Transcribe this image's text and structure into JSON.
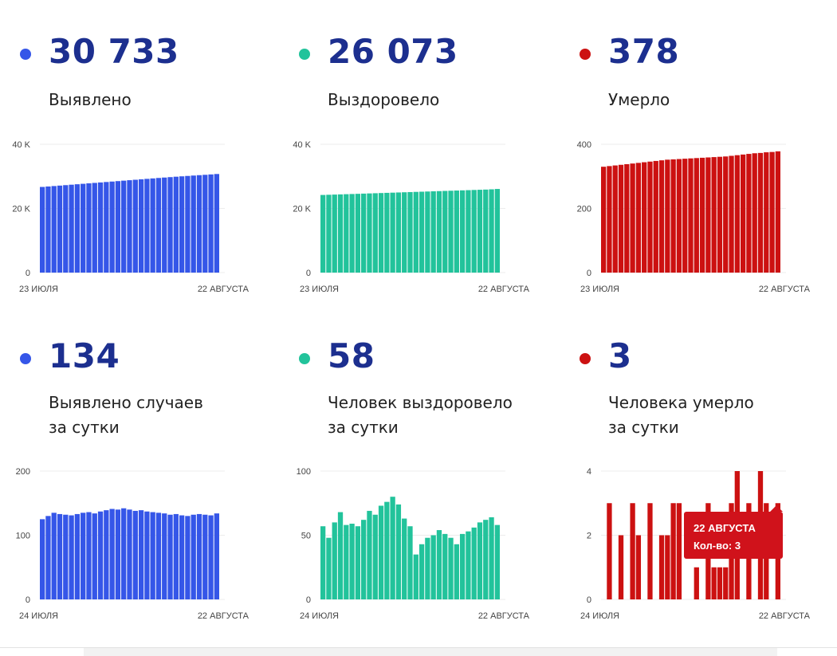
{
  "cards": [
    {
      "value": "30 733",
      "label1": "Выявлено",
      "label2": "",
      "color": "#3556e8"
    },
    {
      "value": "26 073",
      "label1": "Выздоровело",
      "label2": "",
      "color": "#22c39b"
    },
    {
      "value": "378",
      "label1": "Умерло",
      "label2": "",
      "color": "#cc1111"
    },
    {
      "value": "134",
      "label1": "Выявлено случаев",
      "label2": "за сутки",
      "color": "#3556e8"
    },
    {
      "value": "58",
      "label1": "Человек выздоровело",
      "label2": "за сутки",
      "color": "#22c39b"
    },
    {
      "value": "3",
      "label1": "Человека умерло",
      "label2": "за сутки",
      "color": "#cc1111"
    }
  ],
  "tooltip": {
    "date": "22 АВГУСТА",
    "count": "Кол-во: 3"
  },
  "chart_data": [
    {
      "type": "bar",
      "title": "",
      "xlabel": "",
      "ylabel": "",
      "ylim": [
        0,
        40000
      ],
      "yticks": [
        0,
        20000,
        40000
      ],
      "ytick_labels": [
        "0",
        "20 K",
        "40 K"
      ],
      "xtick_labels": [
        "23 ИЮЛЯ",
        "22 АВГУСТА"
      ],
      "color": "#3556e8",
      "values": [
        26700,
        26840,
        26980,
        27120,
        27260,
        27400,
        27540,
        27680,
        27820,
        27960,
        28100,
        28240,
        28380,
        28520,
        28660,
        28800,
        28940,
        29080,
        29220,
        29360,
        29500,
        29630,
        29760,
        29890,
        30010,
        30130,
        30250,
        30370,
        30480,
        30600,
        30733
      ]
    },
    {
      "type": "bar",
      "title": "",
      "xlabel": "",
      "ylabel": "",
      "ylim": [
        0,
        40000
      ],
      "yticks": [
        0,
        20000,
        40000
      ],
      "ytick_labels": [
        "0",
        "20 K",
        "40 K"
      ],
      "xtick_labels": [
        "23 ИЮЛЯ",
        "22 АВГУСТА"
      ],
      "color": "#22c39b",
      "values": [
        24200,
        24260,
        24320,
        24380,
        24440,
        24500,
        24560,
        24620,
        24680,
        24740,
        24800,
        24860,
        24920,
        24980,
        25040,
        25100,
        25160,
        25220,
        25280,
        25340,
        25400,
        25460,
        25520,
        25580,
        25640,
        25700,
        25760,
        25820,
        25880,
        25960,
        26073
      ]
    },
    {
      "type": "bar",
      "title": "",
      "xlabel": "",
      "ylabel": "",
      "ylim": [
        0,
        400
      ],
      "yticks": [
        0,
        200,
        400
      ],
      "ytick_labels": [
        "0",
        "200",
        "400"
      ],
      "xtick_labels": [
        "23 ИЮЛЯ",
        "22 АВГУСТА"
      ],
      "color": "#cc1111",
      "values": [
        330,
        332,
        334,
        336,
        338,
        340,
        342,
        344,
        346,
        348,
        350,
        352,
        353,
        354,
        355,
        356,
        357,
        358,
        359,
        360,
        361,
        362,
        364,
        366,
        368,
        370,
        372,
        373,
        375,
        376,
        378
      ]
    },
    {
      "type": "bar",
      "title": "",
      "xlabel": "",
      "ylabel": "",
      "ylim": [
        0,
        200
      ],
      "yticks": [
        0,
        100,
        200
      ],
      "ytick_labels": [
        "0",
        "100",
        "200"
      ],
      "xtick_labels": [
        "24 ИЮЛЯ",
        "22 АВГУСТА"
      ],
      "color": "#3556e8",
      "values": [
        125,
        130,
        135,
        133,
        132,
        131,
        133,
        135,
        136,
        134,
        137,
        139,
        141,
        140,
        142,
        140,
        138,
        139,
        137,
        136,
        135,
        134,
        132,
        133,
        131,
        130,
        132,
        133,
        132,
        131,
        134
      ]
    },
    {
      "type": "bar",
      "title": "",
      "xlabel": "",
      "ylabel": "",
      "ylim": [
        0,
        100
      ],
      "yticks": [
        0,
        50,
        100
      ],
      "ytick_labels": [
        "0",
        "50",
        "100"
      ],
      "xtick_labels": [
        "24 ИЮЛЯ",
        "22 АВГУСТА"
      ],
      "color": "#22c39b",
      "values": [
        57,
        48,
        60,
        68,
        58,
        59,
        57,
        62,
        69,
        66,
        73,
        76,
        80,
        74,
        63,
        57,
        35,
        43,
        48,
        50,
        54,
        51,
        48,
        43,
        51,
        53,
        56,
        60,
        62,
        64,
        58
      ]
    },
    {
      "type": "bar",
      "title": "",
      "xlabel": "",
      "ylabel": "",
      "ylim": [
        0,
        4
      ],
      "yticks": [
        0,
        2,
        4
      ],
      "ytick_labels": [
        "0",
        "2",
        "4"
      ],
      "xtick_labels": [
        "24 ИЮЛЯ",
        "22 АВГУСТА"
      ],
      "color": "#cc1111",
      "values": [
        0,
        3,
        0,
        2,
        0,
        3,
        2,
        0,
        3,
        0,
        2,
        2,
        3,
        3,
        0,
        0,
        1,
        0,
        3,
        1,
        1,
        1,
        3,
        4,
        0,
        3,
        0,
        4,
        3,
        0,
        3
      ]
    }
  ]
}
